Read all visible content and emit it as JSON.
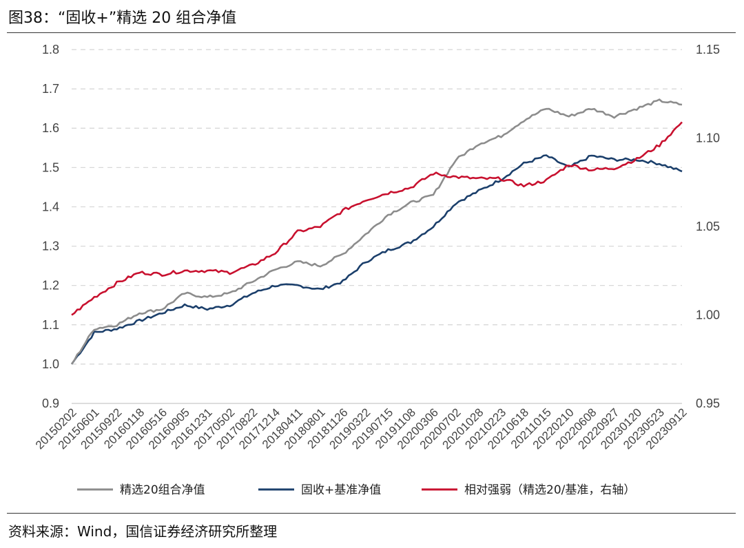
{
  "figure": {
    "title": "图38：“固收+”精选 20 组合净值",
    "source": "资料来源：Wind，国信证券经济研究所整理"
  },
  "colors": {
    "selected20": "#1b3f6b",
    "benchmark": "#8c8c8c",
    "relative": "#c8102e",
    "grid": "#d4d4d4"
  },
  "chart_data": {
    "type": "line",
    "x_tick_labels": [
      "20150202",
      "20150601",
      "20150922",
      "20160118",
      "20160516",
      "20160905",
      "20161231",
      "20170502",
      "20170822",
      "20171214",
      "20180411",
      "20180801",
      "20181126",
      "20190322",
      "20190715",
      "20191108",
      "20200306",
      "20200702",
      "20201028",
      "20210223",
      "20210618",
      "20211015",
      "20220210",
      "20220608",
      "20220927",
      "20230120",
      "20230523",
      "20230912"
    ],
    "left_axis": {
      "ylim": [
        0.9,
        1.8
      ],
      "ticks": [
        "0.9",
        "1.0",
        "1.1",
        "1.2",
        "1.3",
        "1.4",
        "1.5",
        "1.6",
        "1.7",
        "1.8"
      ]
    },
    "right_axis": {
      "ylim": [
        0.95,
        1.15
      ],
      "ticks": [
        "0.95",
        "1.00",
        "1.05",
        "1.10",
        "1.15"
      ]
    },
    "grid": "horizontal-dashed",
    "legend_position": "bottom",
    "series": [
      {
        "name": "精选20组合净值",
        "axis": "left",
        "values": [
          1.0,
          1.09,
          1.1,
          1.13,
          1.14,
          1.18,
          1.17,
          1.18,
          1.21,
          1.24,
          1.26,
          1.25,
          1.28,
          1.33,
          1.38,
          1.41,
          1.43,
          1.52,
          1.56,
          1.58,
          1.62,
          1.65,
          1.63,
          1.65,
          1.63,
          1.65,
          1.67,
          1.66
        ]
      },
      {
        "name": "固收+基准净值",
        "axis": "left",
        "values": [
          1.0,
          1.08,
          1.09,
          1.11,
          1.13,
          1.15,
          1.14,
          1.15,
          1.18,
          1.2,
          1.2,
          1.19,
          1.21,
          1.26,
          1.29,
          1.31,
          1.35,
          1.41,
          1.44,
          1.47,
          1.51,
          1.53,
          1.5,
          1.53,
          1.52,
          1.52,
          1.51,
          1.49
        ]
      },
      {
        "name": "相对强弱（精选20/基准，右轴）",
        "axis": "right",
        "values": [
          1.0,
          1.01,
          1.018,
          1.024,
          1.023,
          1.025,
          1.025,
          1.024,
          1.028,
          1.035,
          1.047,
          1.05,
          1.059,
          1.065,
          1.069,
          1.072,
          1.08,
          1.078,
          1.077,
          1.077,
          1.073,
          1.076,
          1.085,
          1.082,
          1.083,
          1.088,
          1.096,
          1.109
        ]
      }
    ]
  }
}
